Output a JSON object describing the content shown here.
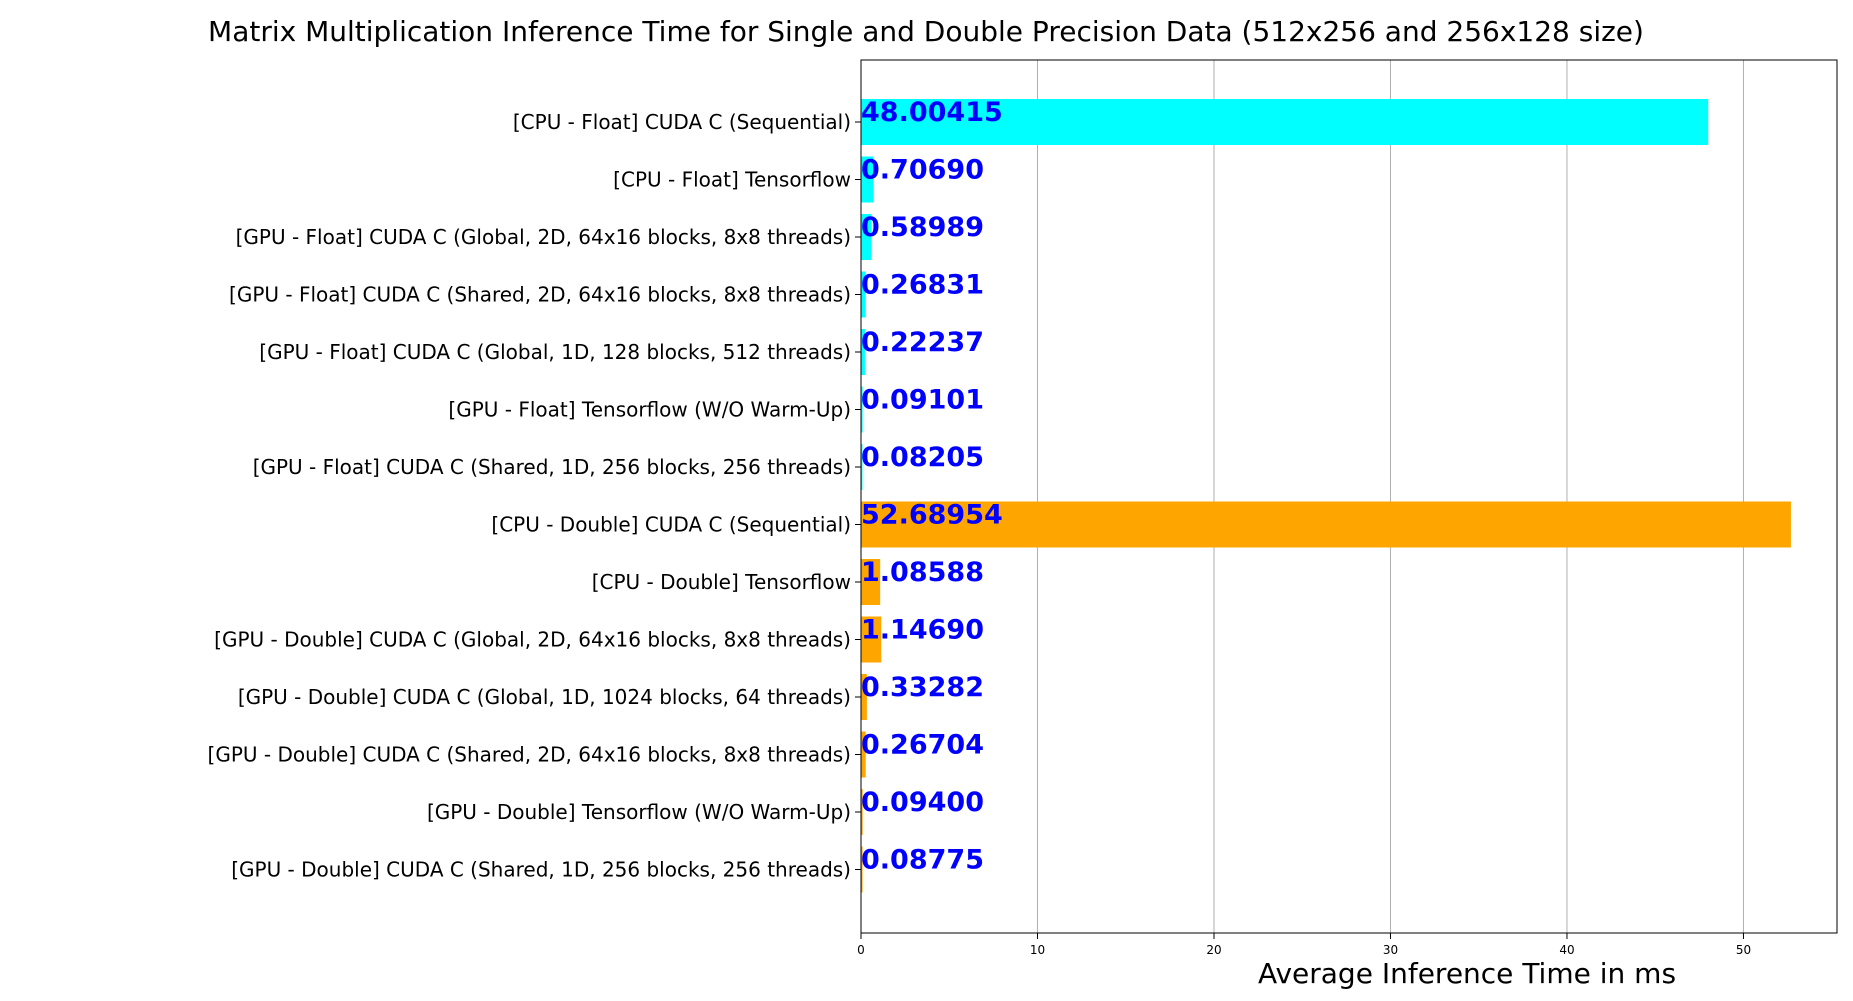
{
  "chart_data": {
    "type": "bar",
    "orientation": "horizontal",
    "title": "Matrix Multiplication Inference Time for Single and Double Precision Data (512x256 and 256x128 size)",
    "xlabel": "Average Inference Time in ms",
    "ylabel": "",
    "xlim": [
      0,
      55.3
    ],
    "xticks": [
      0,
      10,
      20,
      30,
      40,
      50
    ],
    "grid": "x",
    "legend": "none",
    "label_color": "#0000ff",
    "categories": [
      "[CPU - Float] CUDA C (Sequential)",
      "[CPU - Float] Tensorflow",
      "[GPU - Float] CUDA C (Global, 2D, 64x16 blocks, 8x8 threads)",
      "[GPU - Float] CUDA C (Shared, 2D, 64x16 blocks, 8x8 threads)",
      "[GPU - Float] CUDA C (Global, 1D, 128 blocks, 512 threads)",
      "[GPU - Float] Tensorflow (W/O Warm-Up)",
      "[GPU - Float] CUDA C (Shared, 1D, 256 blocks, 256 threads)",
      "[CPU - Double] CUDA C (Sequential)",
      "[CPU - Double] Tensorflow",
      "[GPU - Double] CUDA C (Global, 2D, 64x16 blocks, 8x8 threads)",
      "[GPU - Double] CUDA C (Global, 1D, 1024 blocks, 64 threads)",
      "[GPU - Double] CUDA C (Shared, 2D, 64x16 blocks, 8x8 threads)",
      "[GPU - Double] Tensorflow (W/O Warm-Up)",
      "[GPU - Double] CUDA C (Shared, 1D, 256 blocks, 256 threads)"
    ],
    "values": [
      48.00415,
      0.7069,
      0.58989,
      0.26831,
      0.22237,
      0.09101,
      0.08205,
      52.68954,
      1.08588,
      1.1469,
      0.33282,
      0.26704,
      0.094,
      0.08775
    ],
    "value_labels": [
      "48.00415",
      "0.70690",
      "0.58989",
      "0.26831",
      "0.22237",
      "0.09101",
      "0.08205",
      "52.68954",
      "1.08588",
      "1.14690",
      "0.33282",
      "0.26704",
      "0.09400",
      "0.08775"
    ],
    "colors": [
      "#00ffff",
      "#00ffff",
      "#00ffff",
      "#00ffff",
      "#00ffff",
      "#00ffff",
      "#00ffff",
      "#ffa500",
      "#ffa500",
      "#ffa500",
      "#ffa500",
      "#ffa500",
      "#ffa500",
      "#ffa500"
    ]
  }
}
